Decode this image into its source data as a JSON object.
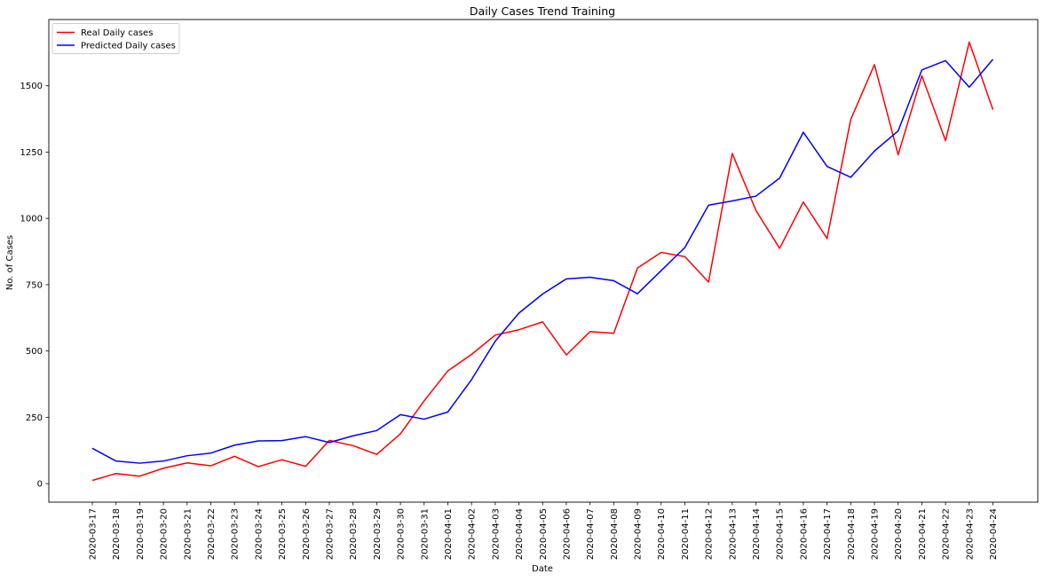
{
  "chart_data": {
    "type": "line",
    "title": "Daily Cases Trend Training",
    "xlabel": "Date",
    "ylabel": "No. of Cases",
    "ylim": [
      -70,
      1750
    ],
    "yticks": [
      0,
      250,
      500,
      750,
      1000,
      1250,
      1500
    ],
    "grid": false,
    "legend_position": "top-left",
    "categories": [
      "2020-03-17",
      "2020-03-18",
      "2020-03-19",
      "2020-03-20",
      "2020-03-21",
      "2020-03-22",
      "2020-03-23",
      "2020-03-24",
      "2020-03-25",
      "2020-03-26",
      "2020-03-27",
      "2020-03-28",
      "2020-03-29",
      "2020-03-30",
      "2020-03-31",
      "2020-04-01",
      "2020-04-02",
      "2020-04-03",
      "2020-04-04",
      "2020-04-05",
      "2020-04-06",
      "2020-04-07",
      "2020-04-08",
      "2020-04-09",
      "2020-04-10",
      "2020-04-11",
      "2020-04-12",
      "2020-04-13",
      "2020-04-14",
      "2020-04-15",
      "2020-04-16",
      "2020-04-17",
      "2020-04-18",
      "2020-04-19",
      "2020-04-20",
      "2020-04-21",
      "2020-04-22",
      "2020-04-23",
      "2020-04-24"
    ],
    "series": [
      {
        "name": "Real Daily cases",
        "color": "#ff0000",
        "values": [
          12,
          38,
          28,
          58,
          78,
          67,
          103,
          64,
          90,
          65,
          163,
          143,
          110,
          188,
          312,
          425,
          487,
          560,
          580,
          610,
          485,
          573,
          567,
          813,
          872,
          856,
          760,
          1245,
          1030,
          887,
          1062,
          924,
          1373,
          1580,
          1240,
          1538,
          1293,
          1665,
          1410
        ]
      },
      {
        "name": "Predicted Daily cases",
        "color": "#0000ff",
        "values": [
          133,
          85,
          77,
          85,
          105,
          115,
          145,
          161,
          162,
          177,
          155,
          180,
          200,
          260,
          243,
          270,
          392,
          537,
          643,
          715,
          772,
          778,
          765,
          716,
          803,
          890,
          1050,
          1066,
          1084,
          1152,
          1325,
          1196,
          1155,
          1254,
          1330,
          1560,
          1595,
          1495,
          1600
        ]
      }
    ]
  }
}
